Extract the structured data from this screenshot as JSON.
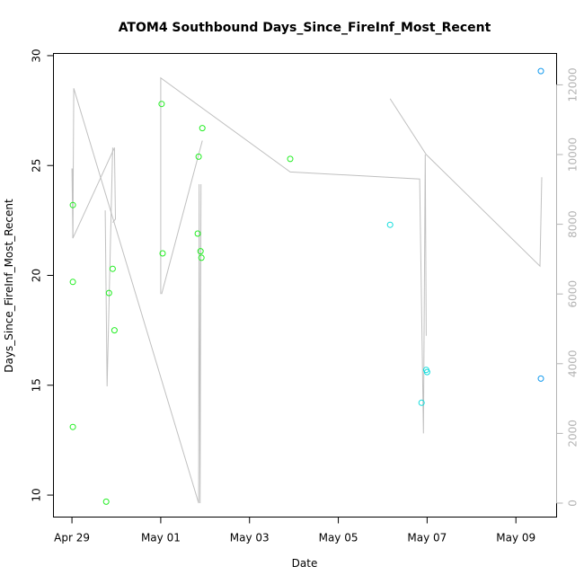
{
  "chart_data": {
    "type": "scatter",
    "title": "ATOM4 Southbound Days_Since_FireInf_Most_Recent",
    "xlabel": "Date",
    "ylabel": "Days_Since_FireInf_Most_Recent",
    "x_ticks": [
      "Apr 29",
      "May 01",
      "May 03",
      "May 05",
      "May 07",
      "May 09"
    ],
    "xlim": [
      "2011-04-28 14:00",
      "2011-05-09 22:00"
    ],
    "y_ticks": [
      10,
      15,
      20,
      25,
      30
    ],
    "ylim": [
      9.0,
      30.1
    ],
    "y2_ticks": [
      0,
      2000,
      4000,
      6000,
      8000,
      10000,
      12000
    ],
    "y2lim": [
      -400,
      12900
    ],
    "grid": false,
    "colors": {
      "green_points": "#22ee22",
      "cyan_points": "#11dddd",
      "blue_points": "#1199ee",
      "line": "#c0c0c0",
      "right_axis": "#b3b3b3"
    },
    "series": [
      {
        "color": "#22ee22",
        "points": [
          {
            "x": "2011-04-29 00:30",
            "y": 23.2
          },
          {
            "x": "2011-04-29 00:30",
            "y": 19.7
          },
          {
            "x": "2011-04-29 00:30",
            "y": 13.1
          },
          {
            "x": "2011-04-29 18:30",
            "y": 9.7
          },
          {
            "x": "2011-04-29 20:00",
            "y": 19.2
          },
          {
            "x": "2011-04-29 22:00",
            "y": 20.3
          },
          {
            "x": "2011-04-29 23:00",
            "y": 17.5
          },
          {
            "x": "2011-05-01 00:30",
            "y": 27.8
          },
          {
            "x": "2011-05-01 01:00",
            "y": 21.0
          },
          {
            "x": "2011-05-01 20:00",
            "y": 21.9
          },
          {
            "x": "2011-05-01 20:30",
            "y": 25.4
          },
          {
            "x": "2011-05-01 21:30",
            "y": 21.1
          },
          {
            "x": "2011-05-01 22:00",
            "y": 20.8
          },
          {
            "x": "2011-05-01 22:30",
            "y": 26.7
          },
          {
            "x": "2011-05-03 22:00",
            "y": 25.3
          }
        ]
      },
      {
        "color": "#11dddd",
        "points": [
          {
            "x": "2011-05-06 04:00",
            "y": 22.3
          },
          {
            "x": "2011-05-06 21:00",
            "y": 14.2
          },
          {
            "x": "2011-05-06 23:30",
            "y": 15.7
          },
          {
            "x": "2011-05-07 00:00",
            "y": 15.6
          }
        ]
      },
      {
        "color": "#1199ee",
        "points": [
          {
            "x": "2011-05-09 13:30",
            "y": 29.3
          },
          {
            "x": "2011-05-09 13:30",
            "y": 15.3
          }
        ]
      }
    ],
    "line_series": {
      "axis": "right",
      "color": "#c0c0c0",
      "points": [
        {
          "x": "2011-04-29 00:00",
          "y": 9600
        },
        {
          "x": "2011-04-29 00:30",
          "y": 7600
        },
        {
          "x": "2011-04-29 01:00",
          "y": 11900
        },
        {
          "x": "2011-05-01 20:30",
          "y": 0
        },
        {
          "x": "2011-05-01 20:45",
          "y": 9150
        },
        {
          "x": "2011-05-01 21:15",
          "y": 0
        },
        {
          "x": "2011-05-01 21:45",
          "y": 9150
        }
      ],
      "segments": [
        [
          {
            "x": "2011-04-29 00:30",
            "y": 9600
          },
          {
            "x": "2011-04-29 00:30",
            "y": 7600
          },
          {
            "x": "2011-04-29 23:00",
            "y": 10200
          },
          {
            "x": "2011-04-29 23:30",
            "y": 8150
          },
          {
            "x": "2011-04-29 22:00",
            "y": 8050
          }
        ],
        [
          {
            "x": "2011-04-29 18:00",
            "y": 8400
          },
          {
            "x": "2011-04-29 19:00",
            "y": 3350
          },
          {
            "x": "2011-04-29 22:00",
            "y": 10200
          }
        ],
        [
          {
            "x": "2011-05-01 00:00",
            "y": 6000
          },
          {
            "x": "2011-05-01 00:00",
            "y": 12200
          },
          {
            "x": "2011-05-03 22:00",
            "y": 9500
          },
          {
            "x": "2011-05-06 20:00",
            "y": 9300
          },
          {
            "x": "2011-05-06 22:00",
            "y": 2000
          },
          {
            "x": "2011-05-06 23:00",
            "y": 10000
          },
          {
            "x": "2011-05-06 23:30",
            "y": 4800
          }
        ],
        [
          {
            "x": "2011-05-01 00:30",
            "y": 6000
          },
          {
            "x": "2011-05-01 22:30",
            "y": 10400
          }
        ],
        [
          {
            "x": "2011-05-06 04:00",
            "y": 11600
          },
          {
            "x": "2011-05-06 23:30",
            "y": 10000
          },
          {
            "x": "2011-05-09 13:00",
            "y": 6800
          },
          {
            "x": "2011-05-09 14:00",
            "y": 9350
          }
        ]
      ]
    }
  }
}
